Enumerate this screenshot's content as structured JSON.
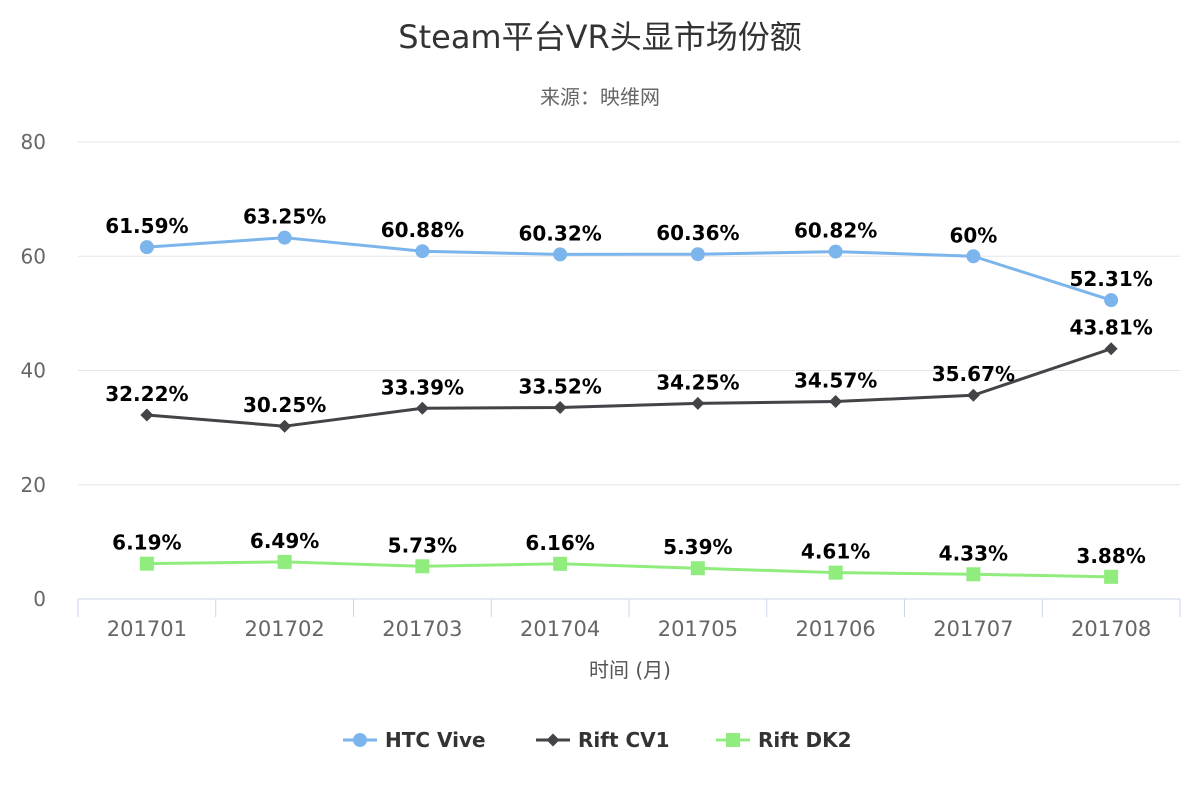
{
  "chart_data": {
    "type": "line",
    "title": "Steam平台VR头显市场份额",
    "subtitle": "来源：映维网",
    "xlabel": "时间 (月)",
    "ylabel": "",
    "ylim": [
      0,
      80
    ],
    "yticks": [
      0,
      20,
      40,
      60,
      80
    ],
    "grid": true,
    "legend_position": "bottom",
    "categories": [
      "201701",
      "201702",
      "201703",
      "201704",
      "201705",
      "201706",
      "201707",
      "201708"
    ],
    "series": [
      {
        "name": "HTC Vive",
        "color": "#7cb5ec",
        "marker": "circle",
        "values": [
          61.59,
          63.25,
          60.88,
          60.32,
          60.36,
          60.82,
          60,
          52.31
        ],
        "labels": [
          "61.59%",
          "63.25%",
          "60.88%",
          "60.32%",
          "60.36%",
          "60.82%",
          "60%",
          "52.31%"
        ]
      },
      {
        "name": "Rift CV1",
        "color": "#434348",
        "marker": "diamond",
        "values": [
          32.22,
          30.25,
          33.39,
          33.52,
          34.25,
          34.57,
          35.67,
          43.81
        ],
        "labels": [
          "32.22%",
          "30.25%",
          "33.39%",
          "33.52%",
          "34.25%",
          "34.57%",
          "35.67%",
          "43.81%"
        ]
      },
      {
        "name": "Rift DK2",
        "color": "#90ed7d",
        "marker": "square",
        "values": [
          6.19,
          6.49,
          5.73,
          6.16,
          5.39,
          4.61,
          4.33,
          3.88
        ],
        "labels": [
          "6.19%",
          "6.49%",
          "5.73%",
          "6.16%",
          "5.39%",
          "4.61%",
          "4.33%",
          "3.88%"
        ]
      }
    ]
  }
}
